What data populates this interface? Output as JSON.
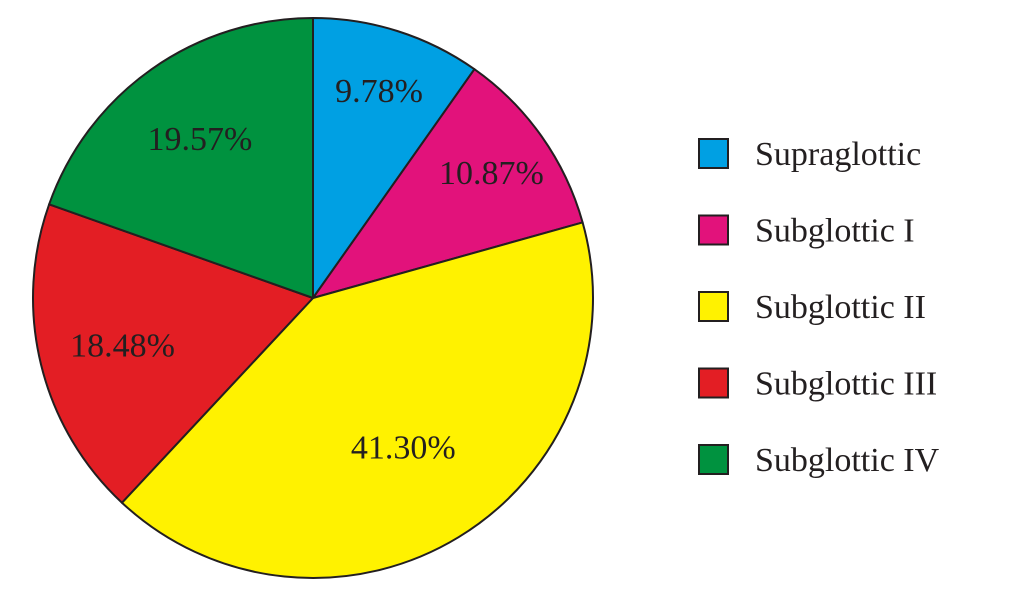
{
  "chart_data": {
    "type": "pie",
    "categories": [
      "Supraglottic",
      "Subglottic I",
      "Subglottic II",
      "Subglottic III",
      "Subglottic IV"
    ],
    "values": [
      9.78,
      10.87,
      41.3,
      18.48,
      19.57
    ],
    "labels": [
      "9.78%",
      "10.87%",
      "41.30%",
      "18.48%",
      "19.57%"
    ],
    "colors": [
      "#00a0e3",
      "#e2127b",
      "#fff200",
      "#e31e24",
      "#00923f"
    ],
    "start": "12 o'clock",
    "direction": "clockwise",
    "legend_position": "right",
    "title": ""
  }
}
